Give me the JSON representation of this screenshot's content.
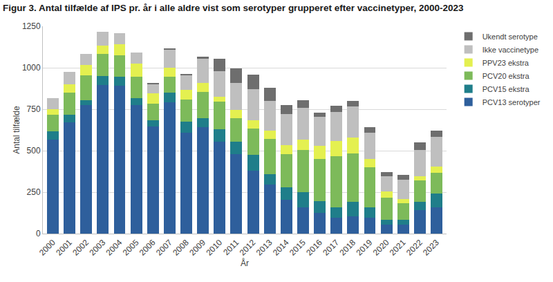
{
  "chart_data": {
    "type": "bar",
    "title": "Figur 3. Antal tilfælde af IPS pr. år i alle aldre vist som serotyper grupperet efter vaccinetyper, 2000-2023",
    "x_label": "År",
    "y_label": "Antal tilfælde",
    "categories": [
      "2000",
      "2001",
      "2002",
      "2003",
      "2004",
      "2005",
      "2006",
      "2007",
      "2008",
      "2009",
      "2010",
      "2011",
      "2012",
      "2013",
      "2014",
      "2015",
      "2016",
      "2017",
      "2018",
      "2019",
      "2020",
      "2021",
      "2022",
      "2023"
    ],
    "stacked": true,
    "grid": true,
    "legend": "right",
    "ylim": [
      0,
      1250
    ],
    "yticks": [
      0,
      250,
      500,
      750,
      1000,
      1250
    ],
    "series": [
      {
        "name": "PCV13 serotyper",
        "color": "#2E5F9C",
        "values": [
          565,
          670,
          775,
          895,
          890,
          775,
          645,
          790,
          610,
          640,
          555,
          480,
          380,
          295,
          205,
          160,
          125,
          95,
          105,
          95,
          55,
          55,
          140,
          160
        ]
      },
      {
        "name": "PCV15 ekstra",
        "color": "#1F7E8A",
        "values": [
          50,
          45,
          30,
          55,
          55,
          40,
          40,
          60,
          65,
          55,
          75,
          75,
          95,
          65,
          75,
          90,
          70,
          65,
          85,
          65,
          30,
          30,
          50,
          80
        ]
      },
      {
        "name": "PCV20 ekstra",
        "color": "#7DBA5A",
        "values": [
          100,
          135,
          150,
          135,
          130,
          130,
          100,
          95,
          135,
          160,
          165,
          140,
          160,
          210,
          200,
          255,
          255,
          305,
          295,
          240,
          130,
          100,
          130,
          125
        ]
      },
      {
        "name": "PPV23 ekstra",
        "color": "#E4F050",
        "values": [
          35,
          50,
          60,
          50,
          65,
          80,
          60,
          55,
          55,
          55,
          30,
          50,
          50,
          50,
          55,
          60,
          80,
          95,
          95,
          50,
          40,
          25,
          25,
          40
        ]
      },
      {
        "name": "Ikke vaccinetype",
        "color": "#BFBFBF",
        "values": [
          65,
          75,
          70,
          80,
          70,
          65,
          55,
          110,
          90,
          145,
          155,
          165,
          185,
          180,
          185,
          195,
          175,
          175,
          185,
          160,
          90,
          115,
          160,
          180
        ]
      },
      {
        "name": "Ukendt serotype",
        "color": "#6E6E6E",
        "values": [
          0,
          0,
          0,
          0,
          0,
          0,
          5,
          5,
          5,
          10,
          75,
          85,
          90,
          80,
          55,
          45,
          25,
          35,
          35,
          30,
          25,
          30,
          45,
          35
        ]
      }
    ]
  }
}
